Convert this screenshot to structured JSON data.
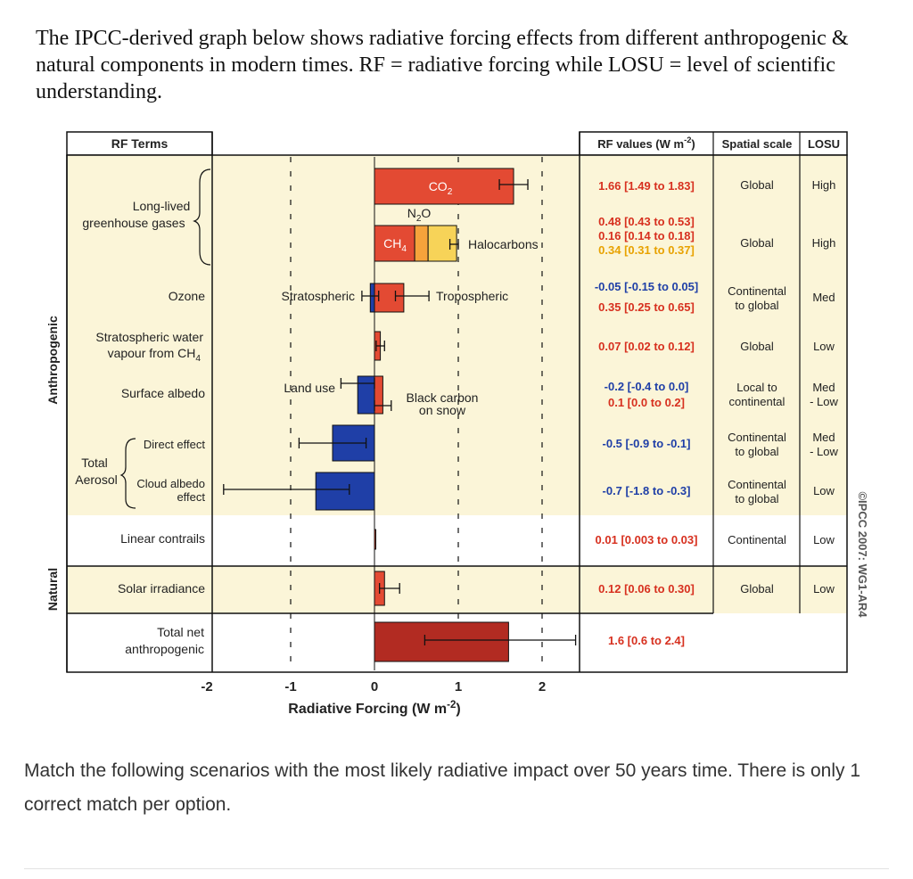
{
  "intro_text": "The IPCC-derived graph below shows radiative forcing effects from different anthropogenic & natural components in modern times. RF = radiative forcing while LOSU = level of scientific understanding.",
  "question_text": "Match the following scenarios with the most likely radiative impact over 50 years time. There is only 1 correct match per option.",
  "colors": {
    "band": "#fbf5d8",
    "red": "#e34a33",
    "dark_red": "#b22b22",
    "blue": "#1f3fa7",
    "orange": "#f6a33b",
    "yellow": "#f7d358",
    "orange_text": "#e8a200",
    "red_text": "#d7301f",
    "blue_text": "#1f3fa7"
  },
  "chart_data": {
    "type": "bar",
    "orientation": "horizontal",
    "xlabel": "Radiative Forcing (W m-2)",
    "xlim": [
      -2,
      2
    ],
    "xticks": [
      "-2",
      "-1",
      "0",
      "1",
      "2"
    ],
    "headers": {
      "terms": "RF Terms",
      "values": "RF values (W m-2)",
      "scale": "Spatial scale",
      "losu": "LOSU"
    },
    "groups": [
      "Anthropogenic",
      "Natural"
    ],
    "watermark": "©IPCC 2007: WG1-AR4",
    "rows": [
      {
        "term": "Long-lived greenhouse gases",
        "bars": [
          {
            "label": "CO2",
            "value": 1.66,
            "low": 1.49,
            "high": 1.83
          },
          {
            "label": "N2O",
            "value": 0.16,
            "low": 0.14,
            "high": 0.18
          },
          {
            "label": "CH4",
            "value": 0.48,
            "low": 0.43,
            "high": 0.53
          },
          {
            "label": "Halocarbons",
            "value": 0.34,
            "low": 0.31,
            "high": 0.37
          }
        ],
        "values": [
          "1.66 [1.49 to 1.83]",
          "0.48 [0.43 to 0.53]",
          "0.16 [0.14 to 0.18]",
          "0.34 [0.31 to 0.37]"
        ],
        "scale": "Global",
        "losu": "High"
      },
      {
        "term": "Ozone",
        "bars": [
          {
            "label": "Stratospheric",
            "value": -0.05,
            "low": -0.15,
            "high": 0.05
          },
          {
            "label": "Tropospheric",
            "value": 0.35,
            "low": 0.25,
            "high": 0.65
          }
        ],
        "values": [
          "-0.05 [-0.15 to 0.05]",
          "0.35 [0.25 to 0.65]"
        ],
        "scale": "Continental to global",
        "losu": "Med"
      },
      {
        "term": "Stratospheric water vapour from CH4",
        "bars": [
          {
            "value": 0.07,
            "low": 0.02,
            "high": 0.12
          }
        ],
        "values": [
          "0.07 [0.02 to 0.12]"
        ],
        "scale": "Global",
        "losu": "Low"
      },
      {
        "term": "Surface albedo",
        "bars": [
          {
            "label": "Land use",
            "value": -0.2,
            "low": -0.4,
            "high": 0.0
          },
          {
            "label": "Black carbon on snow",
            "value": 0.1,
            "low": 0.0,
            "high": 0.2
          }
        ],
        "values": [
          "-0.2 [-0.4 to 0.0]",
          "0.1 [0.0 to 0.2]"
        ],
        "scale": "Local to continental",
        "losu": "Med - Low"
      },
      {
        "term": "Direct effect",
        "parent": "Total Aerosol",
        "bars": [
          {
            "value": -0.5,
            "low": -0.9,
            "high": -0.1
          }
        ],
        "values": [
          "-0.5 [-0.9 to -0.1]"
        ],
        "scale": "Continental to global",
        "losu": "Med - Low"
      },
      {
        "term": "Cloud albedo effect",
        "parent": "Total Aerosol",
        "bars": [
          {
            "value": -0.7,
            "low": -1.8,
            "high": -0.3
          }
        ],
        "values": [
          "-0.7 [-1.8 to -0.3]"
        ],
        "scale": "Continental to global",
        "losu": "Low"
      },
      {
        "term": "Linear contrails",
        "bars": [
          {
            "value": 0.01,
            "low": 0.003,
            "high": 0.03
          }
        ],
        "values": [
          "0.01 [0.003 to 0.03]"
        ],
        "scale": "Continental",
        "losu": "Low"
      },
      {
        "term": "Solar irradiance",
        "group": "Natural",
        "bars": [
          {
            "value": 0.12,
            "low": 0.06,
            "high": 0.3
          }
        ],
        "values": [
          "0.12 [0.06 to 0.30]"
        ],
        "scale": "Global",
        "losu": "Low"
      },
      {
        "term": "Total net anthropogenic",
        "bars": [
          {
            "value": 1.6,
            "low": 0.6,
            "high": 2.4
          }
        ],
        "values": [
          "1.6 [0.6 to 2.4]"
        ],
        "scale": "",
        "losu": ""
      }
    ]
  }
}
